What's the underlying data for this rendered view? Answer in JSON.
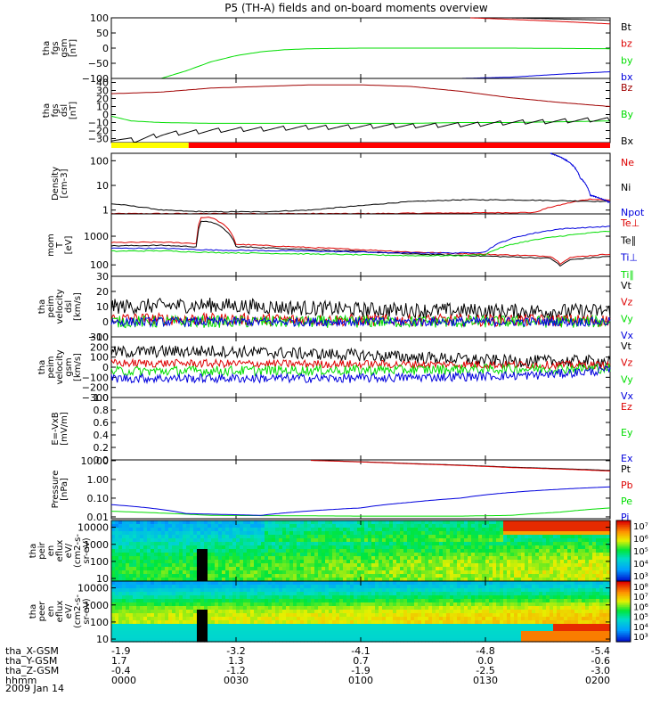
{
  "title": "P5 (TH-A) fields and on-board moments overview",
  "date": "2009 Jan 14",
  "colors": {
    "black": "#000000",
    "red": "#dd0000",
    "green": "#00dd00",
    "blue": "#0000dd",
    "yellow": "#ffff00",
    "orange_red": "#ff0000",
    "dark_red": "#a00000"
  },
  "chart_data": {
    "type": "multi-panel-line-spectrogram",
    "x_ticks": [
      {
        "hhmm": "0000",
        "X": "-1.9",
        "Y": "1.7",
        "Z": "-0.4"
      },
      {
        "hhmm": "0030",
        "X": "-3.2",
        "Y": "1.3",
        "Z": "-1.2"
      },
      {
        "hhmm": "0100",
        "X": "-4.1",
        "Y": "0.7",
        "Z": "-1.9"
      },
      {
        "hhmm": "0130",
        "X": "-4.8",
        "Y": "0.0",
        "Z": "-2.5"
      },
      {
        "hhmm": "0200",
        "X": "-5.4",
        "Y": "-0.6",
        "Z": "-3.0"
      }
    ],
    "ephemeris_labels": [
      "tha_X-GSM",
      "tha_Y-GSM",
      "tha_Z-GSM",
      "hhmm"
    ],
    "mode_bar": {
      "segments": [
        {
          "from": 0,
          "to": 0.155,
          "color": "#ffff00"
        },
        {
          "from": 0.155,
          "to": 1.0,
          "color": "#ff0000"
        }
      ]
    },
    "panels": [
      {
        "id": "fgs_gsm",
        "ylabel": [
          "tha",
          "fgs",
          "gsm",
          "[nT]"
        ],
        "scale": "linear",
        "ylim": [
          -100,
          100
        ],
        "ticks": [
          "100",
          "50",
          "0",
          "−50",
          "−100"
        ],
        "tick_values": [
          100,
          50,
          0,
          -50,
          -100
        ],
        "series": [
          {
            "name": "Bt",
            "color": "#000000",
            "x": [
              0.8,
              0.9,
              1.0
            ],
            "y": [
              100,
              96,
              92
            ]
          },
          {
            "name": "bz",
            "color": "#dd0000",
            "x": [
              0.72,
              0.8,
              0.9,
              1.0
            ],
            "y": [
              100,
              95,
              88,
              80
            ]
          },
          {
            "name": "by",
            "color": "#00dd00",
            "x": [
              0.1,
              0.15,
              0.2,
              0.25,
              0.3,
              0.35,
              0.4,
              0.5,
              0.6,
              0.7,
              0.8,
              0.9,
              1.0
            ],
            "y": [
              -100,
              -75,
              -45,
              -25,
              -12,
              -5,
              -2,
              0,
              0,
              0,
              0,
              -1,
              -2
            ]
          },
          {
            "name": "bx",
            "color": "#0000dd",
            "x": [
              0.7,
              0.8,
              0.9,
              1.0
            ],
            "y": [
              -100,
              -96,
              -86,
              -78
            ]
          }
        ]
      },
      {
        "id": "fgs_dsl",
        "ylabel": [
          "tha",
          "fgs",
          "dsl",
          "[nT]"
        ],
        "scale": "linear",
        "ylim": [
          -35,
          45
        ],
        "ticks": [
          "40",
          "30",
          "20",
          "10",
          "0",
          "−10",
          "−20",
          "−30"
        ],
        "tick_values": [
          40,
          30,
          20,
          10,
          0,
          -10,
          -20,
          -30
        ],
        "series": [
          {
            "name": "Bz",
            "color": "#a00000",
            "x": [
              0.0,
              0.1,
              0.2,
              0.3,
              0.4,
              0.5,
              0.6,
              0.7,
              0.8,
              0.9,
              1.0
            ],
            "y": [
              26,
              28,
              33,
              35,
              37,
              37,
              35,
              29,
              21,
              15,
              10
            ]
          },
          {
            "name": "By",
            "color": "#00dd00",
            "x": [
              0.0,
              0.04,
              0.1,
              0.2,
              0.3,
              0.4,
              0.5,
              0.6,
              0.7,
              0.8,
              0.9,
              1.0
            ],
            "y": [
              -2,
              -8,
              -10,
              -11,
              -11,
              -11,
              -11,
              -11,
              -10,
              -10,
              -9,
              -8
            ]
          },
          {
            "name": "Bx",
            "color": "#000000",
            "x": [
              0.0,
              0.05,
              0.1,
              0.2,
              0.3,
              0.4,
              0.5,
              0.6,
              0.7,
              0.8,
              0.9,
              1.0
            ],
            "y": [
              -30,
              -32,
              -25,
              -20,
              -18,
              -16,
              -15,
              -14,
              -13,
              -10,
              -8,
              -6
            ]
          }
        ]
      },
      {
        "id": "density",
        "ylabel": [
          "Density",
          "[cm-3]"
        ],
        "scale": "log",
        "ylim": [
          0.7,
          200
        ],
        "ticks": [
          "100",
          "10",
          "1"
        ],
        "tick_values": [
          100,
          10,
          1
        ],
        "series": [
          {
            "name": "Ne",
            "color": "#dd0000",
            "x": [
              0.0,
              0.5,
              0.85,
              0.88,
              0.9,
              0.93,
              0.96,
              1.0
            ],
            "y": [
              0.72,
              0.72,
              0.8,
              1.3,
              1.6,
              2.2,
              2.8,
              2.5
            ]
          },
          {
            "name": "Ni",
            "color": "#000000",
            "x": [
              0.0,
              0.05,
              0.1,
              0.15,
              0.2,
              0.3,
              0.4,
              0.5,
              0.6,
              0.7,
              0.8,
              0.9,
              1.0
            ],
            "y": [
              1.8,
              1.4,
              1.0,
              0.9,
              0.85,
              0.85,
              1.0,
              1.5,
              2.2,
              2.6,
              2.6,
              2.4,
              2.2
            ]
          },
          {
            "name": "Npot",
            "color": "#0000dd",
            "x": [
              0.88,
              0.92,
              0.94,
              0.96,
              1.0
            ],
            "y": [
              200,
              80,
              20,
              4,
              2
            ]
          }
        ]
      },
      {
        "id": "temp",
        "ylabel": [
          "mom",
          "T",
          "[eV]"
        ],
        "scale": "log",
        "ylim": [
          40,
          6000
        ],
        "ticks": [
          "1000",
          "100"
        ],
        "tick_values": [
          1000,
          100
        ],
        "series": [
          {
            "name": "Te⊥",
            "color": "#dd0000",
            "x": [
              0.0,
              0.1,
              0.17,
              0.18,
              0.2,
              0.25,
              0.4,
              0.6,
              0.8,
              0.88,
              0.9,
              0.92,
              1.0
            ],
            "y": [
              600,
              620,
              560,
              4500,
              4500,
              520,
              400,
              280,
              220,
              200,
              110,
              180,
              240
            ]
          },
          {
            "name": "Te∥",
            "color": "#000000",
            "x": [
              0.0,
              0.1,
              0.17,
              0.18,
              0.2,
              0.25,
              0.4,
              0.6,
              0.8,
              0.88,
              0.9,
              0.92,
              1.0
            ],
            "y": [
              460,
              480,
              430,
              3200,
              3200,
              430,
              340,
              240,
              190,
              170,
              90,
              150,
              200
            ]
          },
          {
            "name": "Ti⊥",
            "color": "#0000dd",
            "x": [
              0.0,
              0.1,
              0.2,
              0.4,
              0.6,
              0.7,
              0.75,
              0.8,
              0.9,
              1.0
            ],
            "y": [
              380,
              380,
              330,
              300,
              260,
              260,
              280,
              800,
              1800,
              2200
            ]
          },
          {
            "name": "Ti∥",
            "color": "#00dd00",
            "x": [
              0.0,
              0.1,
              0.2,
              0.4,
              0.6,
              0.7,
              0.75,
              0.8,
              0.9,
              1.0
            ],
            "y": [
              300,
              310,
              270,
              240,
              210,
              210,
              230,
              500,
              1000,
              1500
            ]
          }
        ]
      },
      {
        "id": "vel_dsl",
        "ylabel": [
          "tha",
          "peim",
          "velocity",
          "dsl",
          "[km/s]"
        ],
        "scale": "linear",
        "noise": true,
        "ylim": [
          -10,
          30
        ],
        "ticks": [
          "30",
          "20",
          "10",
          "0",
          "−10"
        ],
        "tick_values": [
          30,
          20,
          10,
          0,
          -10
        ],
        "series": [
          {
            "name": "Vt",
            "color": "#000000",
            "x": [
              0.0,
              0.2,
              0.5,
              0.8,
              1.0
            ],
            "y": [
              10,
              11,
              8,
              7,
              7
            ],
            "amp": 5
          },
          {
            "name": "Vz",
            "color": "#dd0000",
            "x": [
              0.0,
              0.5,
              1.0
            ],
            "y": [
              2,
              1,
              1
            ],
            "amp": 4
          },
          {
            "name": "Vy",
            "color": "#00dd00",
            "x": [
              0.0,
              0.5,
              1.0
            ],
            "y": [
              0,
              0,
              0
            ],
            "amp": 4
          },
          {
            "name": "Vx",
            "color": "#0000dd",
            "x": [
              0.0,
              0.5,
              1.0
            ],
            "y": [
              0,
              0,
              0
            ],
            "amp": 3
          }
        ]
      },
      {
        "id": "vel_gsm",
        "ylabel": [
          "tha",
          "peim",
          "velocity",
          "gsm",
          "[km/s]"
        ],
        "scale": "linear",
        "noise": true,
        "ylim": [
          -300,
          300
        ],
        "ticks": [
          "300",
          "200",
          "100",
          "0",
          "−100",
          "−200",
          "−300"
        ],
        "tick_values": [
          300,
          200,
          100,
          0,
          -100,
          -200,
          -300
        ],
        "series": [
          {
            "name": "Vt",
            "color": "#000000",
            "x": [
              0.0,
              0.2,
              0.5,
              0.8,
              1.0
            ],
            "y": [
              150,
              160,
              120,
              60,
              60
            ],
            "amp": 60
          },
          {
            "name": "Vz",
            "color": "#dd0000",
            "x": [
              0.0,
              0.5,
              1.0
            ],
            "y": [
              40,
              30,
              20
            ],
            "amp": 40
          },
          {
            "name": "Vy",
            "color": "#00dd00",
            "x": [
              0.0,
              0.5,
              1.0
            ],
            "y": [
              -40,
              -30,
              -10
            ],
            "amp": 50
          },
          {
            "name": "Vx",
            "color": "#0000dd",
            "x": [
              0.0,
              0.5,
              0.85,
              1.0
            ],
            "y": [
              -110,
              -110,
              -80,
              -30
            ],
            "amp": 45
          }
        ]
      },
      {
        "id": "efield",
        "ylabel": [
          "E=-VxB",
          "[mV/m]"
        ],
        "scale": "linear",
        "ylim": [
          0,
          1
        ],
        "ticks": [
          "1.0",
          "0.8",
          "0.6",
          "0.4",
          "0.2",
          "0.0"
        ],
        "tick_values": [
          1,
          0.8,
          0.6,
          0.4,
          0.2,
          0
        ],
        "series": [
          {
            "name": "Ez",
            "color": "#dd0000",
            "x": [],
            "y": []
          },
          {
            "name": "Ey",
            "color": "#00dd00",
            "x": [],
            "y": []
          },
          {
            "name": "Ex",
            "color": "#0000dd",
            "x": [],
            "y": []
          }
        ]
      },
      {
        "id": "pressure",
        "ylabel": [
          "Pressure",
          "[nPa]"
        ],
        "scale": "log",
        "ylim": [
          0.008,
          11
        ],
        "ticks": [
          "10.00",
          "1.00",
          "0.10",
          "0.01"
        ],
        "tick_values": [
          10,
          1,
          0.1,
          0.01
        ],
        "series": [
          {
            "name": "Pt",
            "color": "#000000",
            "x": [
              0.4,
              0.6,
              0.8,
              1.0
            ],
            "y": [
              10.5,
              7,
              4.5,
              3
            ]
          },
          {
            "name": "Pb",
            "color": "#dd0000",
            "x": [
              0.4,
              0.6,
              0.8,
              1.0
            ],
            "y": [
              10.3,
              6.8,
              4.3,
              2.8
            ]
          },
          {
            "name": "Pe",
            "color": "#00dd00",
            "x": [
              0.0,
              0.2,
              0.5,
              0.7,
              0.8,
              0.9,
              1.0
            ],
            "y": [
              0.02,
              0.012,
              0.011,
              0.011,
              0.012,
              0.018,
              0.03
            ]
          },
          {
            "name": "Pi",
            "color": "#0000dd",
            "x": [
              0.0,
              0.15,
              0.3,
              0.5,
              0.6,
              0.7,
              0.8,
              0.9,
              1.0
            ],
            "y": [
              0.045,
              0.015,
              0.012,
              0.03,
              0.06,
              0.1,
              0.2,
              0.3,
              0.4
            ]
          }
        ]
      },
      {
        "id": "peir",
        "ylabel": [
          "tha",
          "peir",
          "en",
          "eflux",
          "eV/",
          "(cm2-s-",
          "sr-eV)"
        ],
        "scale": "log",
        "type": "spectrogram",
        "ylim": [
          7,
          25000
        ],
        "ticks": [
          "10000",
          "1000",
          "100",
          "10"
        ],
        "tick_values": [
          10000,
          1000,
          100,
          10
        ],
        "colorbar": {
          "ticks": [
            "10⁷",
            "10⁶",
            "10⁵",
            "10⁴",
            "10³"
          ]
        }
      },
      {
        "id": "peer",
        "ylabel": [
          "tha",
          "peer",
          "en",
          "eflux",
          "eV/",
          "(cm2-s-",
          "sr-eV)"
        ],
        "scale": "log",
        "type": "spectrogram",
        "ylim": [
          7,
          25000
        ],
        "ticks": [
          "10000",
          "1000",
          "100",
          "10"
        ],
        "tick_values": [
          10000,
          1000,
          100,
          10
        ],
        "colorbar": {
          "ticks": [
            "10⁸",
            "10⁷",
            "10⁶",
            "10⁵",
            "10⁴",
            "10³"
          ]
        }
      }
    ]
  }
}
